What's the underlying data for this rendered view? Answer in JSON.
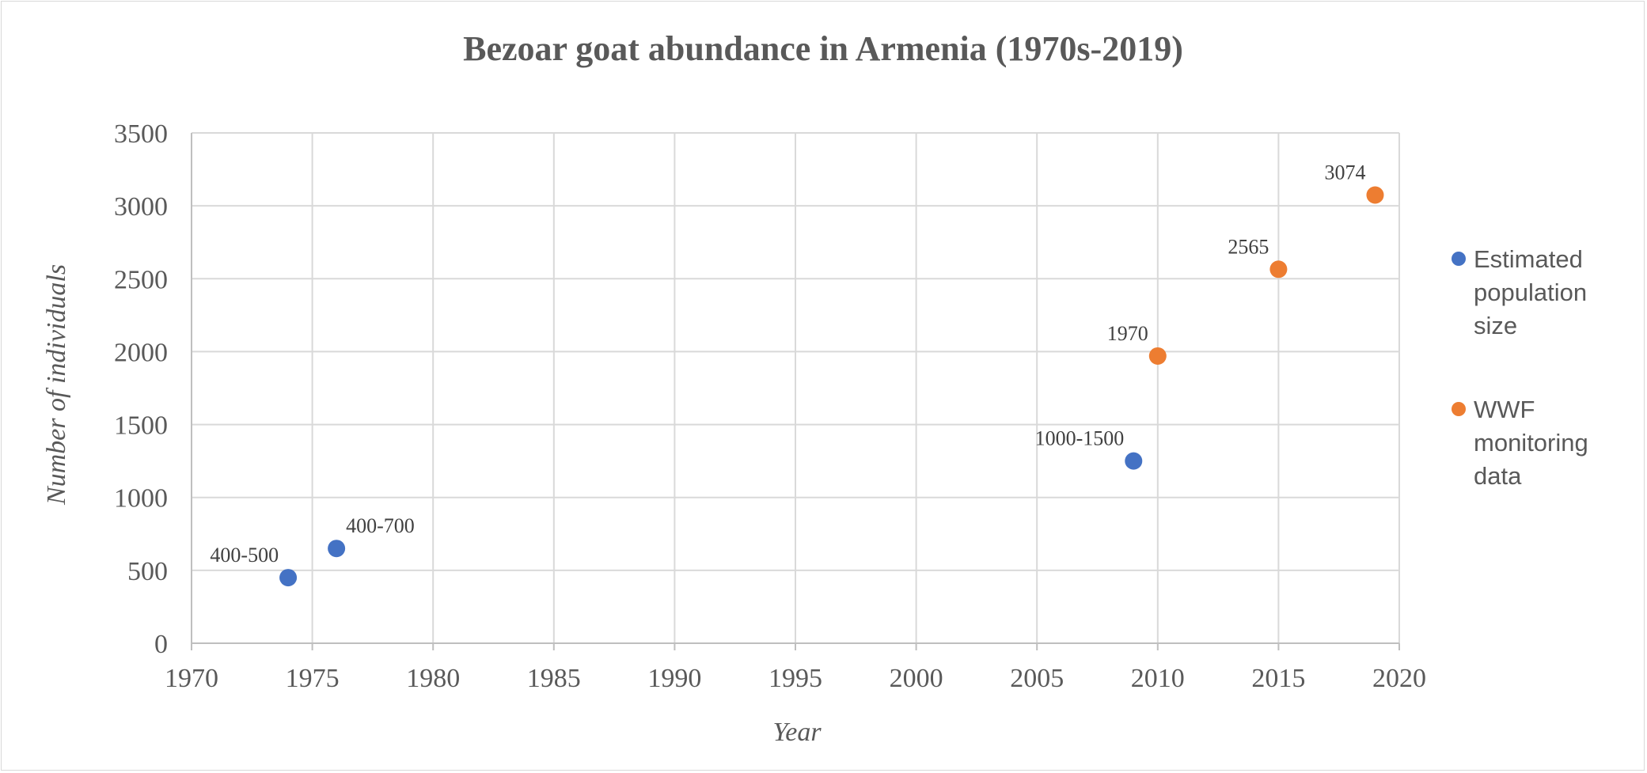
{
  "chart_data": {
    "type": "scatter",
    "title": "Bezoar goat abundance in Armenia (1970s-2019)",
    "xlabel": "Year",
    "ylabel": "Number of individuals",
    "xlim": [
      1970,
      2020
    ],
    "ylim": [
      0,
      3500
    ],
    "xticks": [
      1970,
      1975,
      1980,
      1985,
      1990,
      1995,
      2000,
      2005,
      2010,
      2015,
      2020
    ],
    "yticks": [
      0,
      500,
      1000,
      1500,
      2000,
      2500,
      3000,
      3500
    ],
    "grid": true,
    "legend_position": "right",
    "series": [
      {
        "name": "Estimated population size",
        "legend_lines": [
          "Estimated",
          "population",
          "size"
        ],
        "color": "#4472c4",
        "points": [
          {
            "x": 1974,
            "y": 450,
            "label": "400-500",
            "label_side": "upper-left"
          },
          {
            "x": 1976,
            "y": 650,
            "label": "400-700",
            "label_side": "upper-right"
          },
          {
            "x": 2009,
            "y": 1250,
            "label": "1000-1500",
            "label_side": "upper-left"
          }
        ]
      },
      {
        "name": "WWF monitoring data",
        "legend_lines": [
          "WWF",
          "monitoring",
          "data"
        ],
        "color": "#ed7d31",
        "points": [
          {
            "x": 2010,
            "y": 1970,
            "label": "1970",
            "label_side": "upper-left"
          },
          {
            "x": 2015,
            "y": 2565,
            "label": "2565",
            "label_side": "upper-left"
          },
          {
            "x": 2019,
            "y": 3074,
            "label": "3074",
            "label_side": "upper-left"
          }
        ]
      }
    ]
  }
}
